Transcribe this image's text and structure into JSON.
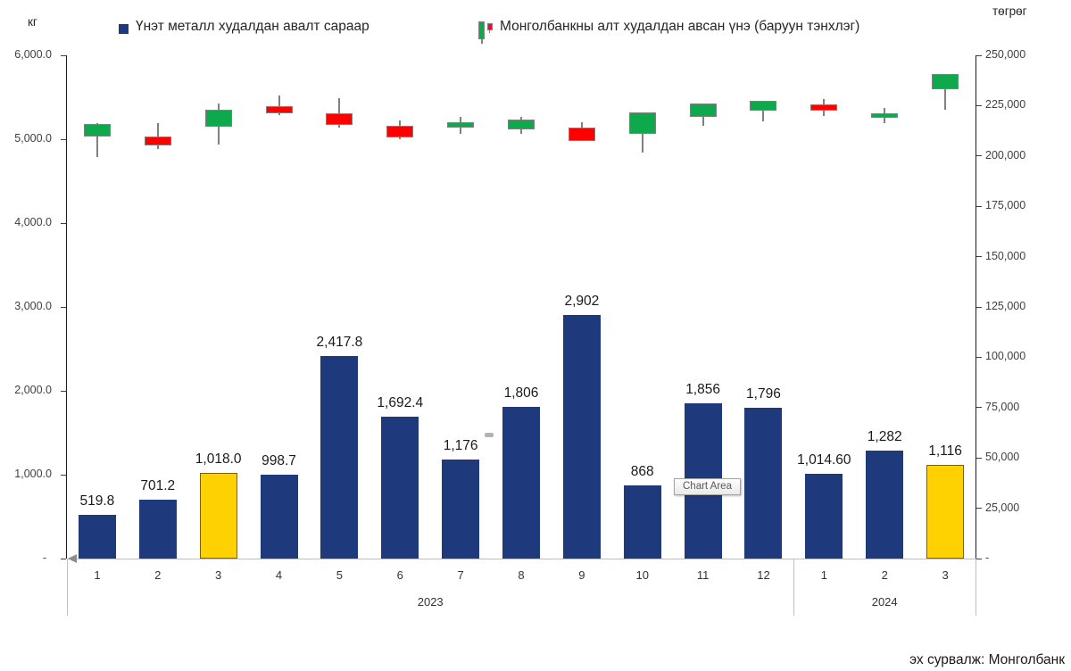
{
  "axes": {
    "left_unit": "кг",
    "right_unit": "төгрөг"
  },
  "legend": {
    "items": [
      {
        "label": "Үнэт металл худалдан авалт сараар",
        "marker": "square",
        "color": "#1F3A7C"
      },
      {
        "label": "Монголбанкны алт худалдан авсан үнэ (баруун тэнхлэг)",
        "marker": "candlestick",
        "up_color": "#0EA84D",
        "down_color": "#E8112D"
      }
    ]
  },
  "tooltip": {
    "label": "Chart Area"
  },
  "source_note": "эх сурвалж: Монголбанк",
  "colors": {
    "bar": "#1F3A7C",
    "bar_highlight": "#FFD100",
    "bar_highlight_border": "#7F6000",
    "candle_up": "#0EA84D",
    "candle_down": "#FF0000",
    "candle_border": "#7F7F7F",
    "wick": "#808080",
    "axis_line": "#1F1F1F",
    "grid_line": "#BFBFBF"
  },
  "chart_data": {
    "type": [
      "bar",
      "candlestick"
    ],
    "categories": [
      "1",
      "2",
      "3",
      "4",
      "5",
      "6",
      "7",
      "8",
      "9",
      "10",
      "11",
      "12",
      "1",
      "2",
      "3"
    ],
    "year_groups": [
      {
        "label": "2023",
        "span": 12
      },
      {
        "label": "2024",
        "span": 3
      }
    ],
    "left_axis": {
      "unit": "кг",
      "min": 0,
      "max": 6000,
      "tick_step": 1000,
      "tick_labels": [
        "6,000.0",
        "5,000.0",
        "4,000.0",
        "3,000.0",
        "2,000.0",
        "1,000.0",
        "-"
      ],
      "tick_values": [
        6000,
        5000,
        4000,
        3000,
        2000,
        1000,
        0
      ]
    },
    "right_axis": {
      "unit": "төгрөг",
      "min": 0,
      "max": 250000,
      "tick_step": 25000,
      "tick_labels": [
        "250,000",
        "225,000",
        "200,000",
        "175,000",
        "150,000",
        "125,000",
        "100,000",
        "75,000",
        "50,000",
        "25,000",
        "-"
      ],
      "tick_values": [
        250000,
        225000,
        200000,
        175000,
        150000,
        125000,
        100000,
        75000,
        50000,
        25000,
        0
      ]
    },
    "bar_series": {
      "name": "Үнэт металл худалдан авалт сараар",
      "axis": "left",
      "values": [
        519.8,
        701.2,
        1018.0,
        998.7,
        2417.8,
        1692.4,
        1176,
        1806,
        2902,
        868,
        1856,
        1796,
        1014.6,
        1282,
        1116
      ],
      "labels": [
        "519.8",
        "701.2",
        "1,018.0",
        "998.7",
        "2,417.8",
        "1,692.4",
        "1,176",
        "1,806",
        "2,902",
        "868",
        "1,856",
        "1,796",
        "1,014.60",
        "1,282",
        "1,116"
      ],
      "highlight_indexes": [
        2,
        14
      ]
    },
    "candle_series": {
      "name": "Монголбанкны алт худалдан авсан үнэ (баруун тэнхлэг)",
      "axis": "right",
      "ohlc_order": [
        "open",
        "high",
        "low",
        "close"
      ],
      "ohlc": [
        [
          209500,
          216300,
          199400,
          216000
        ],
        [
          209800,
          216200,
          203400,
          205300
        ],
        [
          214700,
          226200,
          205600,
          222800
        ],
        [
          224800,
          230000,
          220300,
          221300
        ],
        [
          221000,
          228800,
          214300,
          215300
        ],
        [
          215000,
          217700,
          208300,
          209400
        ],
        [
          214300,
          219500,
          211000,
          216800
        ],
        [
          213200,
          219300,
          210900,
          218000
        ],
        [
          214300,
          216800,
          207300,
          207300
        ],
        [
          210900,
          221800,
          201600,
          221800
        ],
        [
          219300,
          226200,
          215000,
          226200
        ],
        [
          222500,
          227300,
          217300,
          227300
        ],
        [
          225500,
          228200,
          219800,
          222500
        ],
        [
          218800,
          224000,
          216500,
          221300
        ],
        [
          233300,
          240700,
          222800,
          240700
        ]
      ]
    }
  }
}
